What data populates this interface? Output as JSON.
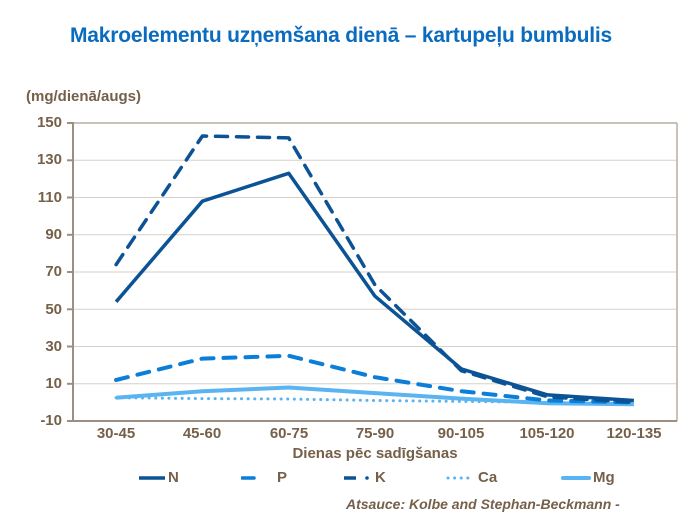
{
  "chart_data": {
    "type": "line",
    "title": "Makroelementu uzņemšana dienā – kartupeļu bumbulis",
    "ylabel": "(mg/dienā/augs)",
    "xlabel": "Dienas pēc sadīgšanas",
    "categories": [
      "30-45",
      "45-60",
      "60-75",
      "75-90",
      "90-105",
      "105-120",
      "120-135"
    ],
    "ylim": [
      -10,
      150
    ],
    "yticks": [
      150,
      130,
      110,
      90,
      70,
      50,
      30,
      10,
      -10
    ],
    "grid": true,
    "legend_position": "bottom",
    "series": [
      {
        "name": "N",
        "style": "solid",
        "color": "#0B5394",
        "values": [
          54,
          108,
          123,
          57,
          18,
          4,
          1
        ]
      },
      {
        "name": "P",
        "style": "dashed",
        "color": "#0A7ED8",
        "values": [
          12,
          23.5,
          25,
          13.5,
          6,
          1,
          0
        ]
      },
      {
        "name": "K",
        "style": "dashdot",
        "color": "#0B5394",
        "values": [
          74,
          143,
          142,
          63,
          17,
          3,
          0
        ]
      },
      {
        "name": "Ca",
        "style": "dotted",
        "color": "#5BB4F2",
        "values": [
          2.5,
          2,
          1.8,
          1,
          0.5,
          0,
          -0.5
        ]
      },
      {
        "name": "Mg",
        "style": "solid",
        "color": "#5BB4F2",
        "values": [
          2.5,
          6,
          8,
          5,
          2,
          -0.5,
          -1
        ]
      }
    ],
    "annotations": [
      "Atsauce: Kolbe and Stephan-Beckmann -"
    ]
  },
  "header": {
    "title": "Makroelementu uzņemšana dienā – kartupeļu bumbulis"
  },
  "axes": {
    "y_unit": "(mg/dienā/augs)",
    "x_label": "Dienas pēc sadīgšanas",
    "y_ticks": [
      "150",
      "130",
      "110",
      "90",
      "70",
      "50",
      "30",
      "10",
      "-10"
    ],
    "x_ticks": [
      "30-45",
      "45-60",
      "60-75",
      "75-90",
      "90-105",
      "105-120",
      "120-135"
    ]
  },
  "legend": {
    "items": [
      {
        "label": "N"
      },
      {
        "label": "P"
      },
      {
        "label": "K"
      },
      {
        "label": "Ca"
      },
      {
        "label": "Mg"
      }
    ]
  },
  "footer": {
    "source": "Atsauce: Kolbe and Stephan-Beckmann -"
  },
  "colors": {
    "title": "#0A6BBF",
    "text": "#75604A",
    "grid": "#D7D0C8",
    "axis": "#9C8E80",
    "dark_blue": "#0B5394",
    "mid_blue": "#0A7ED8",
    "light_blue": "#5BB4F2"
  }
}
